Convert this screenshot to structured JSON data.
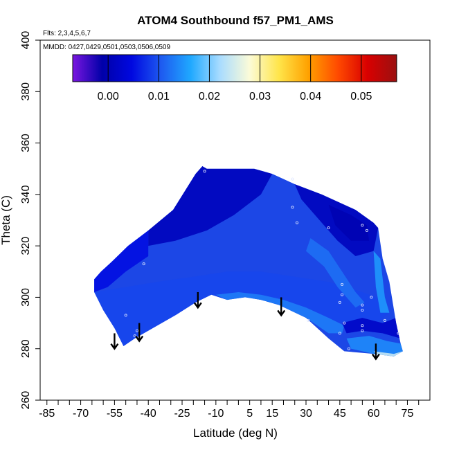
{
  "chart_data": {
    "type": "heatmap",
    "title": "ATOM4 Southbound f57_PM1_AMS",
    "subtitle_flights": "Flts: 2,3,4,5,6,7",
    "subtitle_dates": "MMDD: 0427,0429,0501,0503,0506,0509",
    "xlabel": "Latitude (deg N)",
    "ylabel": "Theta (C)",
    "xlim": [
      -88,
      85
    ],
    "ylim": [
      260,
      400
    ],
    "x_ticks": [
      -85,
      -70,
      -55,
      -40,
      -25,
      -10,
      5,
      15,
      30,
      45,
      60,
      75
    ],
    "x_minor_step": 5,
    "y_ticks": [
      260,
      280,
      300,
      320,
      340,
      360,
      380,
      400
    ],
    "colorbar": {
      "range": [
        -0.007,
        0.057
      ],
      "ticks": [
        0.0,
        0.01,
        0.02,
        0.03,
        0.04,
        0.05
      ],
      "tick_labels": [
        "0.00",
        "0.01",
        "0.02",
        "0.03",
        "0.04",
        "0.05"
      ],
      "colors": [
        "#7a16e0",
        "#0000a8",
        "#0008e0",
        "#1e5af0",
        "#1fa8ff",
        "#a9dcff",
        "#fbfbd8",
        "#ffe54a",
        "#ffa100",
        "#ff4a00",
        "#d90000",
        "#9a1010"
      ]
    },
    "data_outline": [
      [
        -64,
        307
      ],
      [
        -61,
        310
      ],
      [
        -56,
        314
      ],
      [
        -49,
        320
      ],
      [
        -40,
        326
      ],
      [
        -29,
        334
      ],
      [
        -19,
        348
      ],
      [
        -16,
        351
      ],
      [
        -14,
        350
      ],
      [
        7,
        350
      ],
      [
        15,
        348
      ],
      [
        25,
        344
      ],
      [
        37,
        340
      ],
      [
        52,
        334
      ],
      [
        60,
        329
      ],
      [
        62,
        327
      ],
      [
        64,
        315
      ],
      [
        67,
        306
      ],
      [
        70,
        290
      ],
      [
        72,
        282
      ],
      [
        73,
        279
      ],
      [
        69,
        277
      ],
      [
        60,
        278
      ],
      [
        47,
        279
      ],
      [
        40,
        284
      ],
      [
        30,
        292
      ],
      [
        18,
        297
      ],
      [
        10,
        299
      ],
      [
        3,
        300
      ],
      [
        -5,
        299
      ],
      [
        -12,
        301
      ],
      [
        -19,
        298
      ],
      [
        -28,
        293
      ],
      [
        -38,
        288
      ],
      [
        -46,
        284
      ],
      [
        -51,
        281
      ],
      [
        -55,
        288
      ],
      [
        -60,
        295
      ],
      [
        -64,
        302
      ]
    ],
    "color_regions": [
      {
        "level": 0.001,
        "polygon": [
          [
            -40,
            326
          ],
          [
            -29,
            334
          ],
          [
            -19,
            348
          ],
          [
            -16,
            351
          ],
          [
            -14,
            350
          ],
          [
            7,
            350
          ],
          [
            15,
            348
          ],
          [
            10,
            340
          ],
          [
            -2,
            332
          ],
          [
            -14,
            326
          ],
          [
            -28,
            322
          ],
          [
            -40,
            320
          ]
        ]
      },
      {
        "level": 0.001,
        "polygon": [
          [
            25,
            344
          ],
          [
            37,
            340
          ],
          [
            52,
            334
          ],
          [
            60,
            329
          ],
          [
            62,
            327
          ],
          [
            60,
            318
          ],
          [
            52,
            316
          ],
          [
            44,
            322
          ],
          [
            36,
            330
          ],
          [
            28,
            338
          ]
        ]
      },
      {
        "level": 0.0,
        "polygon": [
          [
            40,
            336
          ],
          [
            50,
            332
          ],
          [
            57,
            328
          ],
          [
            58,
            322
          ],
          [
            50,
            322
          ],
          [
            43,
            328
          ]
        ]
      },
      {
        "level": 0.005,
        "polygon": [
          [
            -64,
            307
          ],
          [
            -61,
            310
          ],
          [
            -56,
            314
          ],
          [
            -49,
            320
          ],
          [
            -40,
            326
          ],
          [
            -40,
            316
          ],
          [
            -50,
            310
          ],
          [
            -58,
            304
          ],
          [
            -64,
            302
          ]
        ]
      },
      {
        "level": 0.009,
        "polygon": [
          [
            -55,
            288
          ],
          [
            -60,
            295
          ],
          [
            -64,
            302
          ],
          [
            -50,
            304
          ],
          [
            -36,
            306
          ],
          [
            -20,
            308
          ],
          [
            -5,
            310
          ],
          [
            10,
            310
          ],
          [
            25,
            308
          ],
          [
            40,
            306
          ],
          [
            55,
            302
          ],
          [
            64,
            299
          ],
          [
            67,
            294
          ],
          [
            60,
            289
          ],
          [
            47,
            290
          ],
          [
            38,
            290
          ],
          [
            28,
            294
          ],
          [
            18,
            297
          ],
          [
            10,
            299
          ],
          [
            3,
            300
          ],
          [
            -5,
            299
          ],
          [
            -12,
            301
          ],
          [
            -19,
            298
          ],
          [
            -28,
            293
          ],
          [
            -38,
            288
          ],
          [
            -46,
            284
          ],
          [
            -51,
            281
          ]
        ]
      },
      {
        "level": 0.012,
        "polygon": [
          [
            32,
            323
          ],
          [
            40,
            318
          ],
          [
            46,
            310
          ],
          [
            52,
            302
          ],
          [
            56,
            298
          ],
          [
            52,
            296
          ],
          [
            44,
            304
          ],
          [
            38,
            312
          ],
          [
            30,
            318
          ]
        ]
      },
      {
        "level": 0.013,
        "polygon": [
          [
            -10,
            301
          ],
          [
            0,
            302
          ],
          [
            10,
            301
          ],
          [
            20,
            299
          ],
          [
            30,
            296
          ],
          [
            40,
            292
          ],
          [
            47,
            289
          ],
          [
            46,
            286
          ],
          [
            40,
            286
          ],
          [
            30,
            292
          ],
          [
            18,
            297
          ],
          [
            10,
            299
          ],
          [
            3,
            300
          ],
          [
            -5,
            299
          ]
        ]
      },
      {
        "level": 0.015,
        "polygon": [
          [
            60,
            318
          ],
          [
            63,
            315
          ],
          [
            65,
            300
          ],
          [
            67,
            294
          ],
          [
            63,
            294
          ],
          [
            61,
            304
          ]
        ]
      },
      {
        "level": 0.002,
        "polygon": [
          [
            46,
            290
          ],
          [
            55,
            292
          ],
          [
            64,
            290
          ],
          [
            70,
            292
          ],
          [
            72,
            284
          ],
          [
            64,
            286
          ],
          [
            55,
            287
          ],
          [
            48,
            286
          ]
        ]
      },
      {
        "level": 0.014,
        "polygon": [
          [
            48,
            284
          ],
          [
            58,
            285
          ],
          [
            66,
            283
          ],
          [
            72,
            282
          ],
          [
            73,
            279
          ],
          [
            69,
            277
          ],
          [
            60,
            278
          ],
          [
            50,
            280
          ]
        ]
      },
      {
        "level": 0.024,
        "polygon": [
          [
            60,
            279
          ],
          [
            69,
            278
          ],
          [
            73,
            279
          ],
          [
            70,
            277
          ],
          [
            62,
            277
          ]
        ]
      }
    ],
    "arrows": [
      {
        "x": -55,
        "theta_from": 286,
        "theta_to": 280
      },
      {
        "x": -44,
        "theta_from": 290,
        "theta_to": 283
      },
      {
        "x": -18,
        "theta_from": 302,
        "theta_to": 296
      },
      {
        "x": 19,
        "theta_from": 300,
        "theta_to": 293
      },
      {
        "x": 61,
        "theta_from": 282,
        "theta_to": 276
      }
    ],
    "sample_points": [
      [
        -15,
        349
      ],
      [
        24,
        346
      ],
      [
        24,
        335
      ],
      [
        26,
        329
      ],
      [
        -42,
        313
      ],
      [
        -50,
        293
      ],
      [
        -46,
        285
      ],
      [
        -45,
        287
      ],
      [
        40,
        327
      ],
      [
        55,
        328
      ],
      [
        57,
        326
      ],
      [
        46,
        305
      ],
      [
        46,
        301
      ],
      [
        45,
        298
      ],
      [
        47,
        290
      ],
      [
        45,
        286
      ],
      [
        55,
        297
      ],
      [
        55,
        295
      ],
      [
        55,
        289
      ],
      [
        55,
        287
      ],
      [
        65,
        291
      ],
      [
        71,
        286
      ],
      [
        59,
        300
      ],
      [
        31,
        291
      ],
      [
        49,
        280
      ]
    ]
  }
}
